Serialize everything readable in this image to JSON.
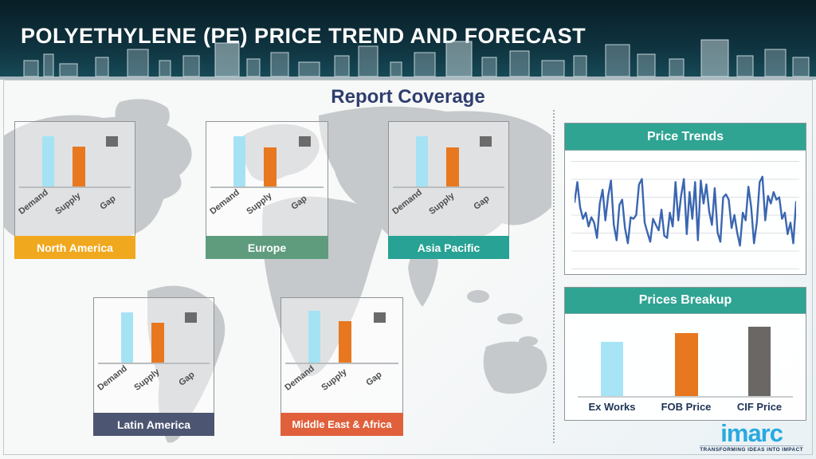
{
  "header": {
    "title": "POLYETHYLENE (PE) PRICE TREND AND FORECAST"
  },
  "section_title": "Report Coverage",
  "bar_labels": [
    "Demand",
    "Supply",
    "Gap"
  ],
  "bar_colors": {
    "demand": "#A5E2F4",
    "supply": "#E8781F",
    "gap": "#6B6B6B"
  },
  "chart_data": [
    {
      "id": "north-america",
      "type": "bar",
      "title": "North America",
      "band_color": "#F0A81E",
      "categories": [
        "Demand",
        "Supply",
        "Gap"
      ],
      "values": [
        88,
        70,
        18
      ],
      "units": "relative height, no axis labels shown",
      "gap_shown_as": "floating gray square"
    },
    {
      "id": "europe",
      "type": "bar",
      "title": "Europe",
      "band_color": "#5F9C7E",
      "categories": [
        "Demand",
        "Supply",
        "Gap"
      ],
      "values": [
        88,
        68,
        18
      ],
      "units": "relative height, no axis labels shown",
      "gap_shown_as": "floating gray square"
    },
    {
      "id": "asia-pacific",
      "type": "bar",
      "title": "Asia Pacific",
      "band_color": "#27A295",
      "categories": [
        "Demand",
        "Supply",
        "Gap"
      ],
      "values": [
        88,
        68,
        18
      ],
      "units": "relative height, no axis labels shown",
      "gap_shown_as": "floating gray square"
    },
    {
      "id": "latin-america",
      "type": "bar",
      "title": "Latin America",
      "band_color": "#4C5571",
      "categories": [
        "Demand",
        "Supply",
        "Gap"
      ],
      "values": [
        88,
        70,
        18
      ],
      "units": "relative height, no axis labels shown",
      "gap_shown_as": "floating gray square"
    },
    {
      "id": "middle-east-africa",
      "type": "bar",
      "title": "Middle East & Africa",
      "band_color": "#E0603C",
      "categories": [
        "Demand",
        "Supply",
        "Gap"
      ],
      "values": [
        90,
        72,
        18
      ],
      "units": "relative height, no axis labels shown",
      "gap_shown_as": "floating gray square"
    },
    {
      "id": "price-trends",
      "type": "line",
      "title": "Price Trends",
      "line_color": "#3B66B0",
      "xlabel": "",
      "ylabel": "",
      "ylim": [
        0,
        100
      ],
      "grid": true,
      "legend": "none",
      "values": [
        62,
        88,
        55,
        40,
        48,
        30,
        42,
        35,
        15,
        60,
        78,
        38,
        70,
        90,
        32,
        12,
        58,
        65,
        28,
        8,
        42,
        40,
        45,
        85,
        92,
        35,
        22,
        10,
        40,
        32,
        25,
        52,
        18,
        15,
        48,
        30,
        88,
        38,
        70,
        92,
        20,
        75,
        40,
        88,
        12,
        90,
        60,
        85,
        50,
        32,
        80,
        22,
        10,
        68,
        72,
        65,
        28,
        45,
        22,
        5,
        48,
        38,
        82,
        55,
        8,
        35,
        88,
        95,
        38,
        70,
        60,
        75,
        65,
        68,
        40,
        48,
        20,
        35,
        8,
        62
      ],
      "note": "decorative unlabeled price volatility line, values estimated 0-100"
    },
    {
      "id": "prices-breakup",
      "type": "bar",
      "title": "Prices Breakup",
      "categories": [
        "Ex Works",
        "FOB Price",
        "CIF Price"
      ],
      "values": [
        68,
        79,
        87
      ],
      "colors": [
        "#A7E4F5",
        "#E8781F",
        "#6B6764"
      ],
      "units": "relative height, no axis labels shown"
    }
  ],
  "logo": {
    "wordmark": "imarc",
    "tagline": "TRANSFORMING IDEAS INTO IMPACT",
    "color": "#29A9E1"
  }
}
